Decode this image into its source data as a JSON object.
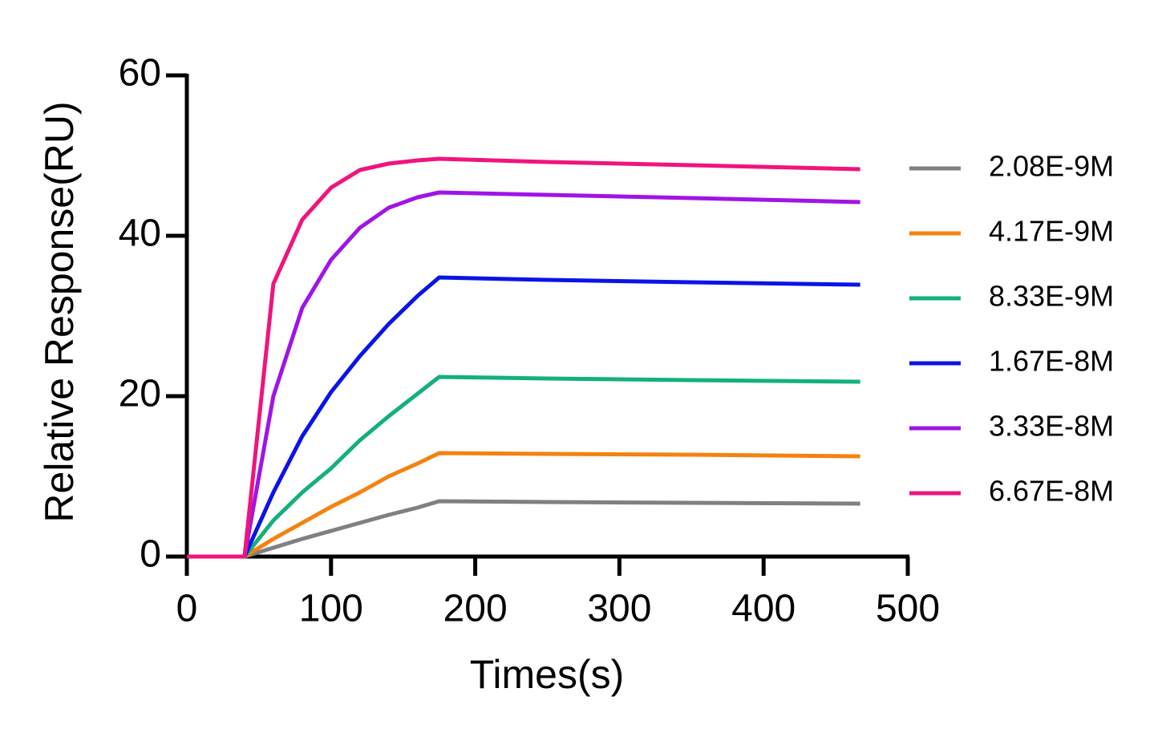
{
  "chart_data": {
    "type": "line",
    "x_label": "Times(s)",
    "y_label": "Relative Response(RU)",
    "x": [
      0,
      40,
      60,
      80,
      100,
      120,
      140,
      160,
      175,
      250,
      350,
      467
    ],
    "series": [
      {
        "name": "2.08E-9M",
        "color": "#808080",
        "values": [
          0,
          0,
          1.1,
          2.2,
          3.2,
          4.2,
          5.2,
          6.1,
          6.9,
          6.8,
          6.7,
          6.6
        ]
      },
      {
        "name": "4.17E-9M",
        "color": "#f5820f",
        "values": [
          0,
          0,
          2.2,
          4.2,
          6.2,
          8,
          10,
          11.6,
          12.9,
          12.8,
          12.7,
          12.5
        ]
      },
      {
        "name": "8.33E-9M",
        "color": "#13b07e",
        "values": [
          0,
          0,
          4.5,
          8,
          11,
          14.5,
          17.5,
          20.3,
          22.4,
          22.2,
          22,
          21.8
        ]
      },
      {
        "name": "1.67E-8M",
        "color": "#0a14e6",
        "values": [
          0,
          0,
          8,
          15,
          20.5,
          25,
          29,
          32.5,
          34.8,
          34.5,
          34.2,
          33.9
        ]
      },
      {
        "name": "3.33E-8M",
        "color": "#a014e6",
        "values": [
          0,
          0,
          20,
          31,
          37,
          41,
          43.5,
          44.8,
          45.4,
          45.1,
          44.7,
          44.2
        ]
      },
      {
        "name": "6.67E-8M",
        "color": "#f0147d",
        "values": [
          0,
          0,
          34,
          42,
          46,
          48.2,
          49,
          49.4,
          49.6,
          49.2,
          48.8,
          48.3
        ]
      }
    ],
    "xlim": [
      0,
      500
    ],
    "xticks": [
      0,
      100,
      200,
      300,
      400,
      500
    ],
    "ylim": [
      0,
      60
    ],
    "yticks": [
      0,
      20,
      40,
      60
    ],
    "legend": "right"
  }
}
